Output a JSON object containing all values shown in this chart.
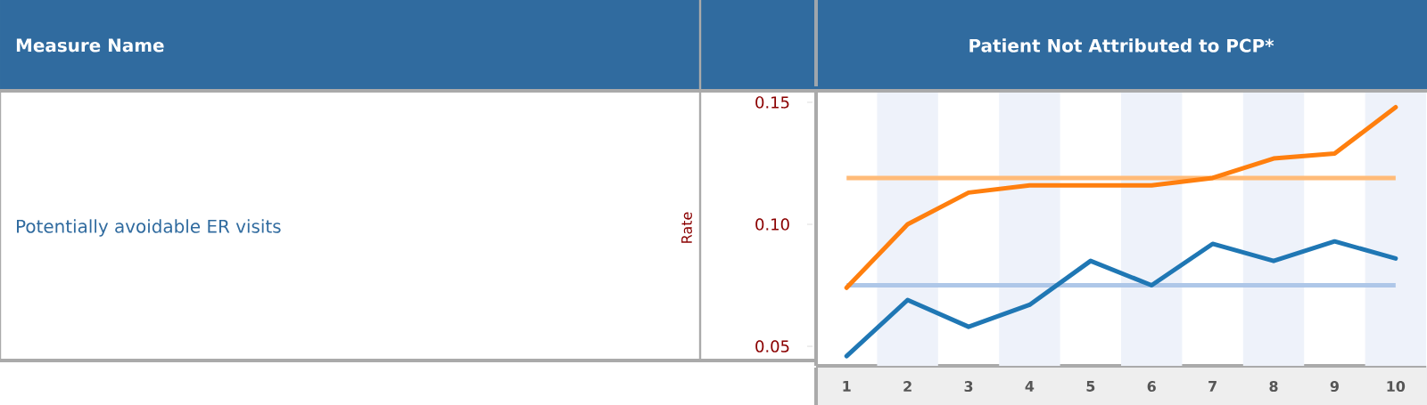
{
  "chart_data": {
    "type": "line",
    "title": "Patient Not Attributed to PCP*",
    "ylabel": "Rate",
    "annotations": [
      "Measure Name",
      "Potentially avoidable ER visits"
    ],
    "x": [
      1,
      2,
      3,
      4,
      5,
      6,
      7,
      8,
      9,
      10
    ],
    "series": [
      {
        "color": "#ff7f0e",
        "values": [
          0.074,
          0.1,
          0.113,
          0.116,
          0.116,
          0.116,
          0.119,
          0.127,
          0.129,
          0.148
        ]
      },
      {
        "color": "#1f77b4",
        "values": [
          0.046,
          0.069,
          0.058,
          0.067,
          0.085,
          0.075,
          0.092,
          0.085,
          0.093,
          0.086
        ]
      }
    ],
    "ref_lines": [
      {
        "axis": "y",
        "value": 0.119,
        "color": "#ffbb78"
      },
      {
        "axis": "y",
        "value": 0.075,
        "color": "#aec7e8"
      }
    ],
    "bands": [
      {
        "axis": "x",
        "from": 1.5,
        "to": 2.5,
        "color": "#eef2fa"
      },
      {
        "axis": "x",
        "from": 3.5,
        "to": 4.5,
        "color": "#eef2fa"
      },
      {
        "axis": "x",
        "from": 5.5,
        "to": 6.5,
        "color": "#eef2fa"
      },
      {
        "axis": "x",
        "from": 7.5,
        "to": 8.5,
        "color": "#eef2fa"
      },
      {
        "axis": "x",
        "from": 9.5,
        "to": 10.5,
        "color": "#eef2fa"
      }
    ],
    "xlim": [
      0.5,
      10.5
    ],
    "ylim": [
      0.042,
      0.154
    ],
    "xticks": [
      1,
      2,
      3,
      4,
      5,
      6,
      7,
      8,
      9,
      10
    ],
    "yticks": [
      0.05,
      {
        "value": 0.1,
        "label": "0.10"
      },
      0.15
    ],
    "grid": false,
    "marker": "none",
    "line_style": "solid"
  }
}
